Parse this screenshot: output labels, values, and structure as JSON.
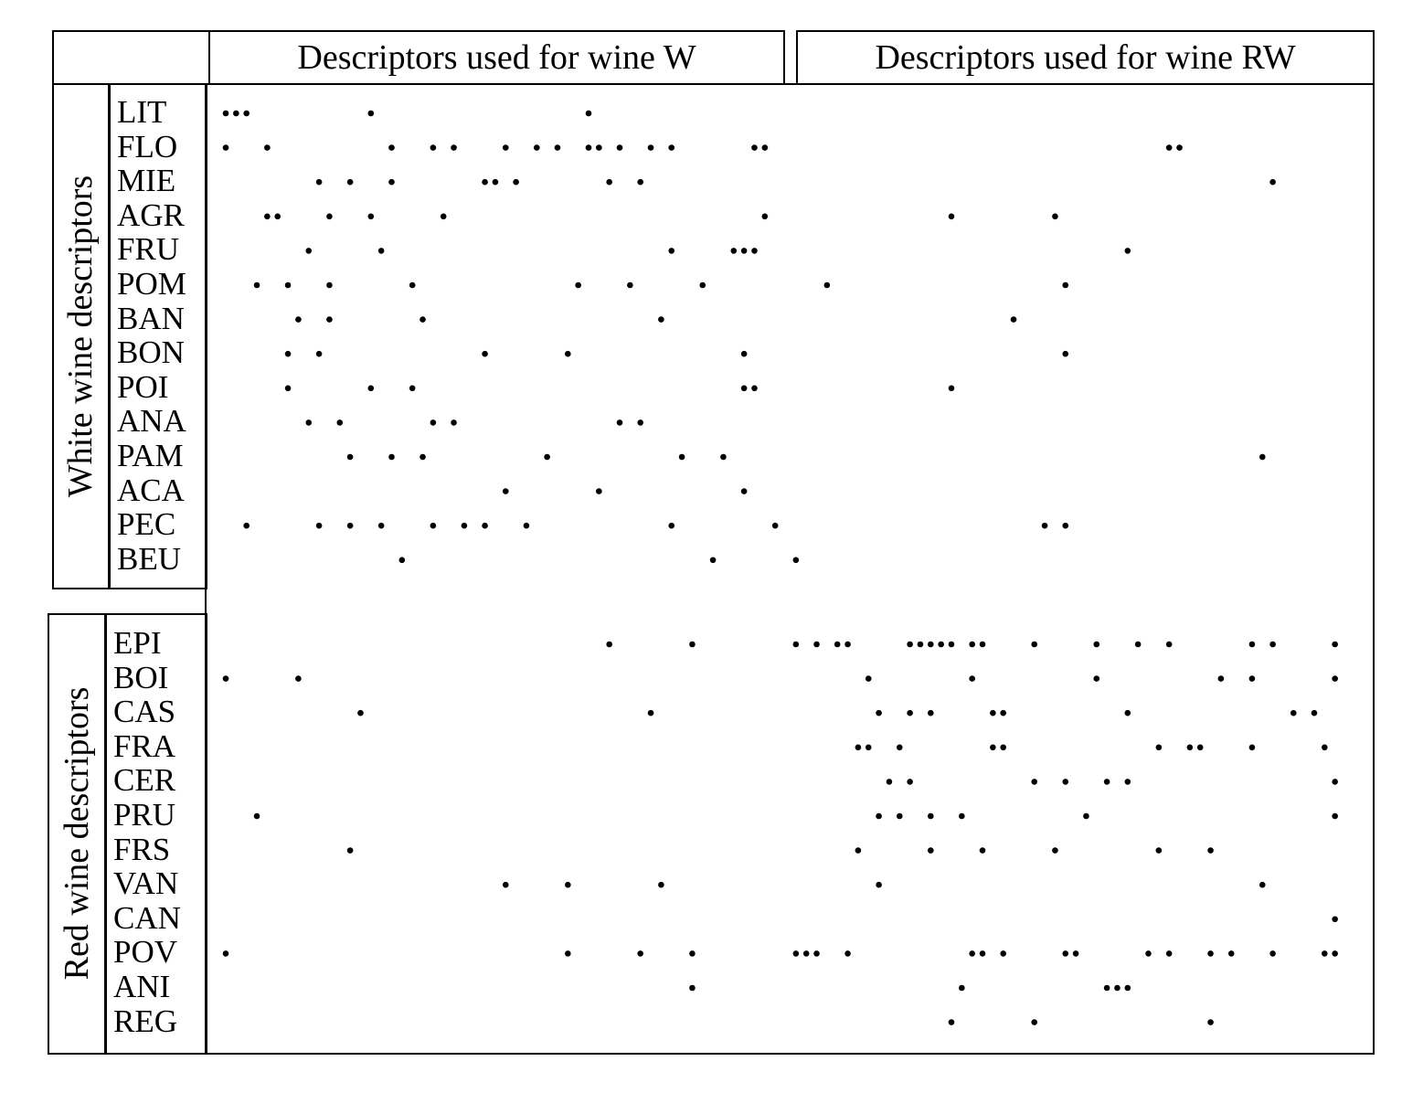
{
  "chart_data": {
    "type": "scatter",
    "column_groups": [
      {
        "label": "Descriptors used for wine W"
      },
      {
        "label": "Descriptors used for wine RW"
      }
    ],
    "row_groups": [
      {
        "label": "White wine descriptors",
        "rows": [
          "LIT",
          "FLO",
          "MIE",
          "AGR",
          "FRU",
          "POM",
          "BAN",
          "BON",
          "POI",
          "ANA",
          "PAM",
          "ACA",
          "PEC",
          "BEU"
        ]
      },
      {
        "label": "Red wine descriptors",
        "rows": [
          "EPI",
          "BOI",
          "CAS",
          "FRA",
          "CER",
          "PRU",
          "FRS",
          "VAN",
          "CAN",
          "POV",
          "ANI",
          "REG"
        ]
      }
    ],
    "x_range": [
      0,
      108
    ],
    "points": {
      "LIT": [
        0,
        1,
        2,
        14,
        35
      ],
      "FLO": [
        0,
        4,
        16,
        20,
        22,
        27,
        30,
        32,
        35,
        36,
        38,
        41,
        43,
        51,
        52,
        91,
        92
      ],
      "MIE": [
        9,
        12,
        16,
        25,
        26,
        28,
        37,
        40,
        101
      ],
      "AGR": [
        4,
        5,
        10,
        14,
        21,
        52,
        70,
        80
      ],
      "FRU": [
        8,
        15,
        43,
        49,
        50,
        51,
        87
      ],
      "POM": [
        3,
        6,
        10,
        18,
        34,
        39,
        46,
        58,
        81
      ],
      "BAN": [
        7,
        10,
        19,
        42,
        76
      ],
      "BON": [
        6,
        9,
        25,
        33,
        50,
        81
      ],
      "POI": [
        6,
        14,
        18,
        50,
        51,
        70
      ],
      "ANA": [
        8,
        11,
        20,
        22,
        38,
        40
      ],
      "PAM": [
        12,
        16,
        19,
        31,
        44,
        48,
        100
      ],
      "ACA": [
        27,
        36,
        50
      ],
      "PEC": [
        2,
        9,
        12,
        15,
        20,
        23,
        25,
        29,
        43,
        53,
        79,
        81
      ],
      "BEU": [
        17,
        47,
        55
      ],
      "EPI": [
        37,
        45,
        55,
        57,
        59,
        60,
        66,
        67,
        68,
        69,
        70,
        72,
        73,
        78,
        84,
        88,
        91,
        99,
        101,
        107
      ],
      "BOI": [
        0,
        7,
        62,
        72,
        84,
        96,
        99,
        107
      ],
      "CAS": [
        13,
        41,
        63,
        66,
        68,
        74,
        75,
        87,
        103,
        105
      ],
      "FRA": [
        61,
        62,
        65,
        74,
        75,
        90,
        93,
        94,
        99,
        106
      ],
      "CER": [
        64,
        66,
        78,
        81,
        85,
        87,
        107
      ],
      "PRU": [
        3,
        63,
        65,
        68,
        71,
        83,
        107
      ],
      "FRS": [
        12,
        61,
        68,
        73,
        80,
        90,
        95
      ],
      "VAN": [
        27,
        33,
        42,
        63,
        100
      ],
      "CAN": [
        107
      ],
      "POV": [
        0,
        33,
        40,
        45,
        55,
        56,
        57,
        60,
        72,
        73,
        75,
        81,
        82,
        89,
        91,
        95,
        97,
        101,
        106,
        107
      ],
      "ANI": [
        45,
        71,
        85,
        86,
        87
      ],
      "REG": [
        70,
        78,
        95
      ]
    }
  }
}
